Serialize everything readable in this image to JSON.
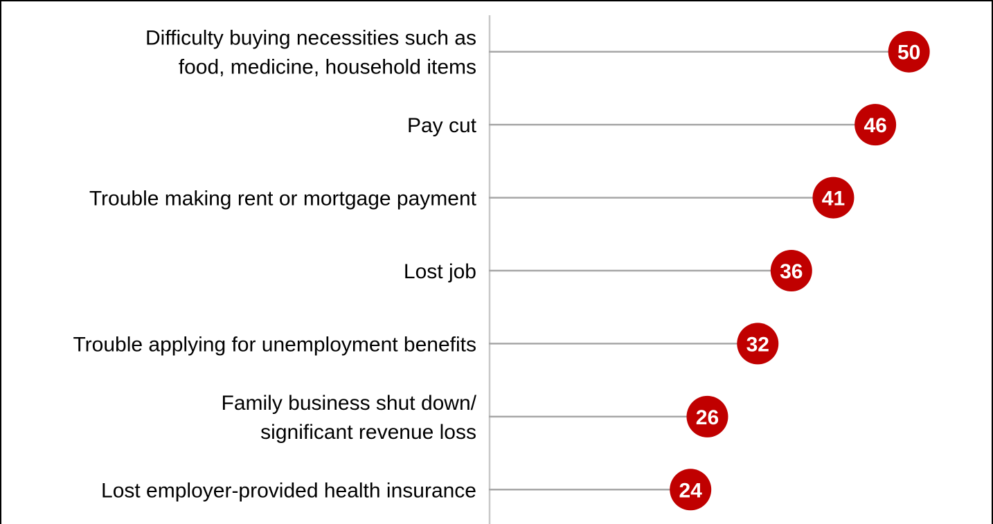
{
  "chart_data": {
    "type": "lollipop",
    "categories": [
      "Difficulty buying necessities such as\nfood, medicine, household items",
      "Pay cut",
      "Trouble making rent or mortgage payment",
      "Lost job",
      "Trouble applying for unemployment benefits",
      "Family business shut down/\nsignificant revenue loss",
      "Lost employer-provided health insurance"
    ],
    "values": [
      50,
      46,
      41,
      36,
      32,
      26,
      24
    ],
    "color": "#c00000",
    "xlim": [
      0,
      60
    ]
  }
}
